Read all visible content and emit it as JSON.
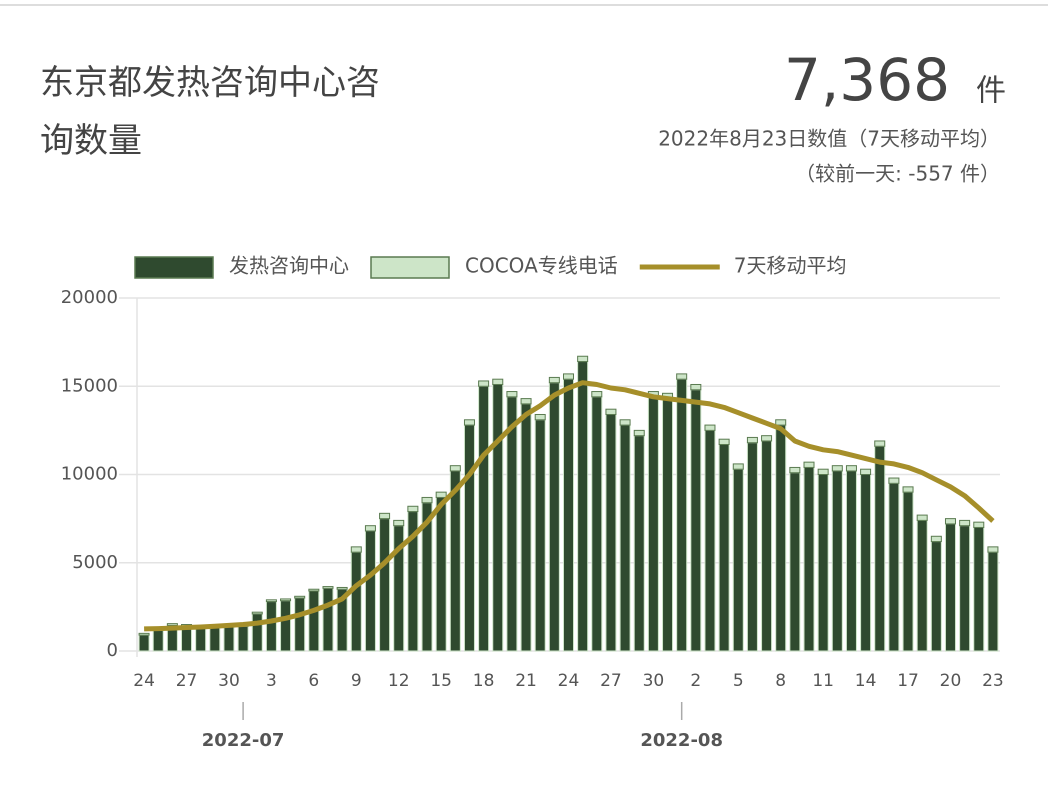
{
  "header": {
    "title": "东京都发热咨询中心咨询数量",
    "headline_value": "7,368",
    "headline_unit": "件",
    "subtitle": "2022年8月23日数值（7天移动平均）",
    "change_note": "（较前一天: -557 件）"
  },
  "chart_data": {
    "type": "bar",
    "categories": [
      "24",
      null,
      null,
      "27",
      null,
      null,
      "30",
      null,
      null,
      "3",
      null,
      null,
      "6",
      null,
      null,
      "9",
      null,
      null,
      "12",
      null,
      null,
      "15",
      null,
      null,
      "18",
      null,
      null,
      "21",
      null,
      null,
      "24",
      null,
      null,
      "27",
      null,
      null,
      "30",
      null,
      null,
      "2",
      null,
      null,
      "5",
      null,
      null,
      "8",
      null,
      null,
      "11",
      null,
      null,
      "14",
      null,
      null,
      "17",
      null,
      null,
      "20",
      null,
      null,
      "23"
    ],
    "month_labels": [
      {
        "index": 7,
        "label": "2022-07"
      },
      {
        "index": 38,
        "label": "2022-08"
      }
    ],
    "series": [
      {
        "name": "发热咨询中心",
        "color": "#2f4a2f",
        "stack": true,
        "values": [
          900,
          1250,
          1450,
          1400,
          1300,
          1350,
          1400,
          1400,
          2100,
          2800,
          2850,
          3000,
          3400,
          3550,
          3500,
          5600,
          6800,
          7500,
          7100,
          7900,
          8400,
          8700,
          10200,
          12800,
          15000,
          15100,
          14400,
          14000,
          13100,
          15200,
          15400,
          16400,
          14400,
          13400,
          12800,
          12200,
          14400,
          14300,
          15400,
          14800,
          12500,
          11700,
          10300,
          11800,
          11900,
          12800,
          10100,
          10400,
          10000,
          10200,
          10200,
          10000,
          11600,
          9500,
          9000,
          7400,
          6200,
          7200,
          7100,
          7000,
          5600
        ]
      },
      {
        "name": "COCOA专线电话",
        "color": "#cde5c8",
        "stack": true,
        "values": [
          100,
          100,
          100,
          100,
          100,
          100,
          100,
          100,
          100,
          100,
          100,
          100,
          100,
          100,
          100,
          300,
          300,
          300,
          300,
          300,
          300,
          300,
          300,
          300,
          300,
          300,
          300,
          300,
          300,
          300,
          300,
          300,
          300,
          300,
          300,
          300,
          300,
          300,
          300,
          300,
          300,
          300,
          300,
          300,
          300,
          300,
          300,
          300,
          300,
          300,
          300,
          300,
          300,
          300,
          300,
          300,
          300,
          300,
          300,
          300,
          300
        ]
      },
      {
        "name": "7天移动平均",
        "color": "#a68f2a",
        "kind": "line",
        "values": [
          1250,
          1270,
          1300,
          1330,
          1360,
          1400,
          1450,
          1500,
          1580,
          1700,
          1850,
          2050,
          2300,
          2600,
          2950,
          3700,
          4300,
          5000,
          5800,
          6500,
          7300,
          8300,
          9100,
          10000,
          11100,
          11900,
          12700,
          13400,
          13900,
          14500,
          14900,
          15200,
          15100,
          14900,
          14800,
          14600,
          14400,
          14300,
          14200,
          14100,
          14000,
          13800,
          13500,
          13200,
          12900,
          12600,
          11900,
          11600,
          11400,
          11300,
          11100,
          10900,
          10700,
          10600,
          10400,
          10100,
          9700,
          9300,
          8800,
          8100,
          7368
        ]
      }
    ],
    "ylim": [
      0,
      20000
    ],
    "yticks": [
      0,
      5000,
      10000,
      15000,
      20000
    ],
    "grid": true,
    "legend": "top"
  }
}
